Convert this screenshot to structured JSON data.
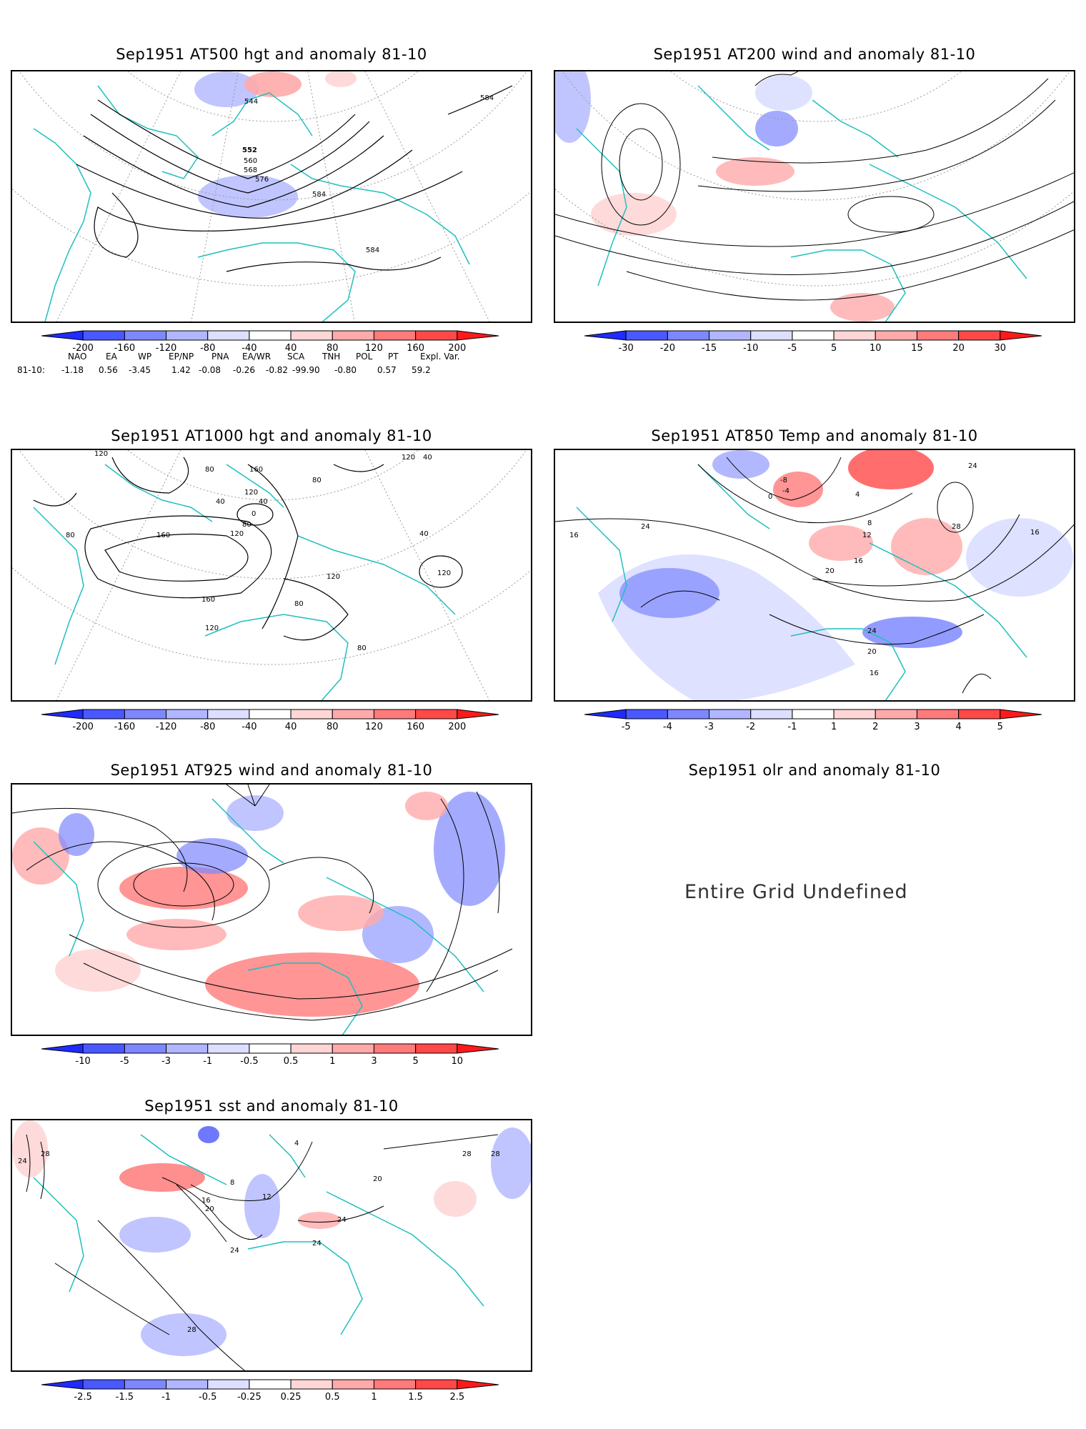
{
  "panels": [
    {
      "id": "p500",
      "title": "Sep1951 AT500 hgt and anomaly 81-10",
      "contour_labels": [
        "544",
        "552",
        "560",
        "568",
        "576",
        "584",
        "584",
        "584"
      ],
      "colorbar": {
        "ticks": [
          "-200",
          "-160",
          "-120",
          "-80",
          "-40",
          "40",
          "80",
          "120",
          "160",
          "200"
        ],
        "colors": [
          "#1f2bff",
          "#4a58ff",
          "#7d88ff",
          "#b0b6ff",
          "#dcdfff",
          "#ffffff",
          "#ffd6d6",
          "#ffaaaa",
          "#ff7a7a",
          "#ff4848",
          "#ff1a1a"
        ]
      }
    },
    {
      "id": "p200",
      "title": "Sep1951 AT200 wind and anomaly 81-10",
      "colorbar": {
        "ticks": [
          "-30",
          "-20",
          "-15",
          "-10",
          "-5",
          "5",
          "10",
          "15",
          "20",
          "30"
        ],
        "colors": [
          "#1f2bff",
          "#4a58ff",
          "#7d88ff",
          "#b0b6ff",
          "#dcdfff",
          "#ffffff",
          "#ffd6d6",
          "#ffaaaa",
          "#ff7a7a",
          "#ff4848",
          "#ff1a1a"
        ]
      }
    },
    {
      "id": "p1000",
      "title": "Sep1951 AT1000 hgt and anomaly 81-10",
      "contour_labels": [
        "120",
        "80",
        "160",
        "40",
        "120",
        "40",
        "0",
        "80",
        "120",
        "160",
        "80",
        "120",
        "40",
        "120",
        "80",
        "80",
        "120",
        "40",
        "80",
        "160",
        "120"
      ],
      "colorbar": {
        "ticks": [
          "-200",
          "-160",
          "-120",
          "-80",
          "-40",
          "40",
          "80",
          "120",
          "160",
          "200"
        ],
        "colors": [
          "#1f2bff",
          "#4a58ff",
          "#7d88ff",
          "#b0b6ff",
          "#dcdfff",
          "#ffffff",
          "#ffd6d6",
          "#ffaaaa",
          "#ff7a7a",
          "#ff4848",
          "#ff1a1a"
        ]
      }
    },
    {
      "id": "p850",
      "title": "Sep1951 AT850 Temp and anomaly 81-10",
      "contour_labels": [
        "-8",
        "-4",
        "0",
        "4",
        "8",
        "12",
        "16",
        "20",
        "24",
        "28",
        "24",
        "16",
        "16",
        "16",
        "20",
        "24"
      ],
      "colorbar": {
        "ticks": [
          "-5",
          "-4",
          "-3",
          "-2",
          "-1",
          "1",
          "2",
          "3",
          "4",
          "5"
        ],
        "colors": [
          "#1f2bff",
          "#4a58ff",
          "#7d88ff",
          "#b0b6ff",
          "#dcdfff",
          "#ffffff",
          "#ffd6d6",
          "#ffaaaa",
          "#ff7a7a",
          "#ff4848",
          "#ff1a1a"
        ]
      }
    },
    {
      "id": "p925",
      "title": "Sep1951 AT925 wind and anomaly 81-10",
      "colorbar": {
        "ticks": [
          "-10",
          "-5",
          "-3",
          "-1",
          "-0.5",
          "0.5",
          "1",
          "3",
          "5",
          "10"
        ],
        "colors": [
          "#1f2bff",
          "#4a58ff",
          "#7d88ff",
          "#b0b6ff",
          "#dcdfff",
          "#ffffff",
          "#ffd6d6",
          "#ffaaaa",
          "#ff7a7a",
          "#ff4848",
          "#ff1a1a"
        ]
      }
    },
    {
      "id": "polr",
      "title": "Sep1951 olr and anomaly 81-10",
      "message": "Entire Grid Undefined"
    },
    {
      "id": "psst",
      "title": "Sep1951 sst and anomaly 81-10",
      "contour_labels": [
        "24",
        "28",
        "4",
        "8",
        "12",
        "16",
        "20",
        "24",
        "28",
        "24",
        "28",
        "20",
        "24",
        "28"
      ],
      "colorbar": {
        "ticks": [
          "-2.5",
          "-1.5",
          "-1",
          "-0.5",
          "-0.25",
          "0.25",
          "0.5",
          "1",
          "1.5",
          "2.5"
        ],
        "colors": [
          "#1f2bff",
          "#4a58ff",
          "#7d88ff",
          "#b0b6ff",
          "#dcdfff",
          "#ffffff",
          "#ffd6d6",
          "#ffaaaa",
          "#ff7a7a",
          "#ff4848",
          "#ff1a1a"
        ]
      }
    }
  ],
  "indices": {
    "row_label": "81-10:",
    "names": [
      "NAO",
      "EA",
      "WP",
      "EP/NP",
      "PNA",
      "EA/WR",
      "SCA",
      "TNH",
      "POL",
      "PT",
      "Expl. Var."
    ],
    "values": [
      "-1.18",
      "0.56",
      "-3.45",
      "1.42",
      "-0.08",
      "-0.26",
      "-0.82",
      "-99.90",
      "-0.80",
      "0.57",
      "59.2"
    ]
  }
}
